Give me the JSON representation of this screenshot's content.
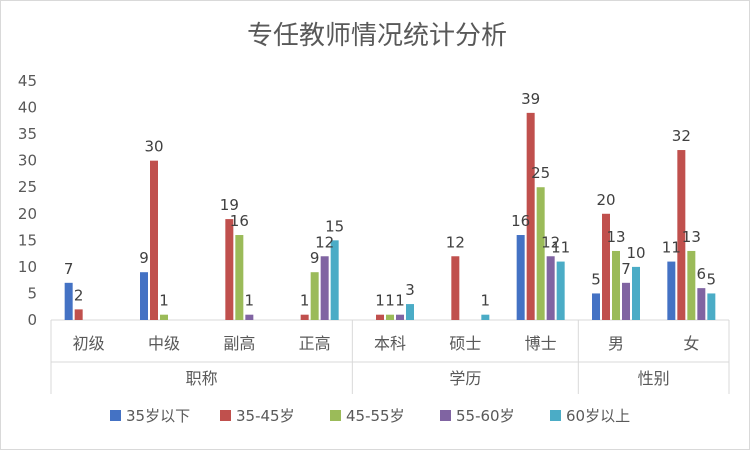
{
  "chart_data": {
    "type": "bar",
    "title": "专任教师情况统计分析",
    "ylim": [
      0,
      45
    ],
    "y_ticks": [
      0,
      5,
      10,
      15,
      20,
      25,
      30,
      35,
      40,
      45
    ],
    "grid": false,
    "legend_position": "bottom",
    "groups": [
      {
        "label": "职称",
        "categories": [
          "初级",
          "中级",
          "副高",
          "正高"
        ]
      },
      {
        "label": "学历",
        "categories": [
          "本科",
          "硕士",
          "博士"
        ]
      },
      {
        "label": "性别",
        "categories": [
          "男",
          "女"
        ]
      }
    ],
    "categories": [
      "初级",
      "中级",
      "副高",
      "正高",
      "本科",
      "硕士",
      "博士",
      "男",
      "女"
    ],
    "series": [
      {
        "name": "35岁以下",
        "color": "#4472c4",
        "values": [
          7,
          9,
          null,
          null,
          null,
          null,
          16,
          5,
          11
        ]
      },
      {
        "name": "35-45岁",
        "color": "#c0504d",
        "values": [
          2,
          30,
          19,
          1,
          1,
          12,
          39,
          20,
          32
        ]
      },
      {
        "name": "45-55岁",
        "color": "#9bbb59",
        "values": [
          null,
          1,
          16,
          9,
          1,
          null,
          25,
          13,
          13
        ]
      },
      {
        "name": "55-60岁",
        "color": "#8064a2",
        "values": [
          null,
          null,
          1,
          12,
          1,
          null,
          12,
          7,
          6
        ]
      },
      {
        "name": "60岁以上",
        "color": "#4bacc6",
        "values": [
          null,
          null,
          null,
          15,
          3,
          1,
          11,
          10,
          5
        ]
      }
    ]
  }
}
